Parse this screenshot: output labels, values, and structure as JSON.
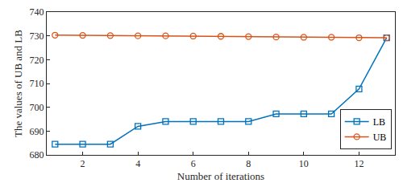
{
  "chart_data": {
    "type": "line",
    "x_label": "Number of iterations",
    "y_label": "The values of UB and LB",
    "x": [
      1,
      2,
      3,
      4,
      5,
      6,
      7,
      8,
      9,
      10,
      11,
      12,
      13
    ],
    "series": [
      {
        "name": "LB",
        "color": "#0072bd",
        "marker": "square",
        "values": [
          684.5,
          684.5,
          684.5,
          692.0,
          694.0,
          694.0,
          694.0,
          694.0,
          697.2,
          697.2,
          697.2,
          707.7,
          729.2
        ]
      },
      {
        "name": "UB",
        "color": "#d95319",
        "marker": "circle",
        "values": [
          730.3,
          730.2,
          730.1,
          730.0,
          730.0,
          729.9,
          729.8,
          729.7,
          729.5,
          729.4,
          729.4,
          729.2,
          729.2
        ]
      }
    ],
    "xlim": [
      0.7,
      13.3
    ],
    "ylim": [
      680,
      740
    ],
    "xticks": [
      2,
      4,
      6,
      8,
      10,
      12
    ],
    "yticks": [
      680,
      690,
      700,
      710,
      720,
      730,
      740
    ],
    "grid": false,
    "legend": "lower right"
  }
}
